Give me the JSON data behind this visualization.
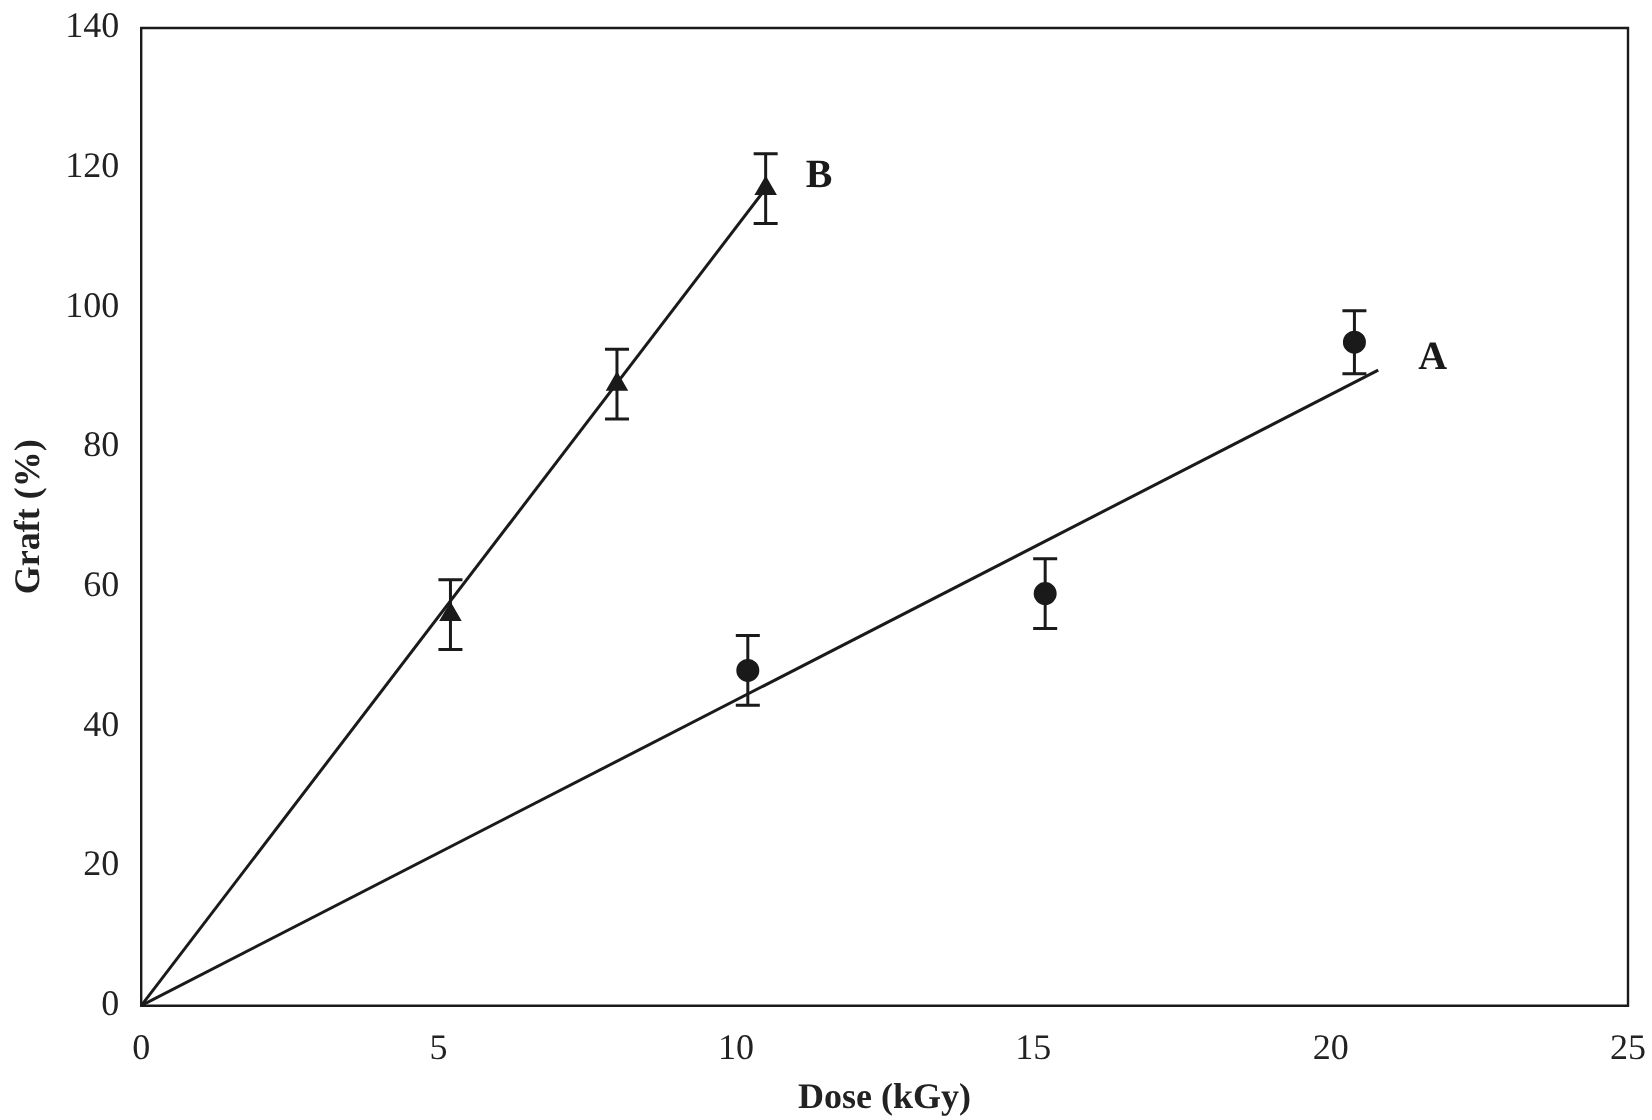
{
  "chart_data": {
    "type": "scatter",
    "xlabel": "Dose (kGy)",
    "ylabel": "Graft (%)",
    "xlim": [
      0,
      25
    ],
    "xticks": [
      0,
      5,
      10,
      15,
      20,
      25
    ],
    "ylim": [
      0,
      140
    ],
    "yticks": [
      0,
      20,
      40,
      60,
      80,
      100,
      120,
      140
    ],
    "grid": false,
    "legend": false,
    "series": [
      {
        "marker": "circle",
        "color": "#1a1a1a",
        "x": [
          10.2,
          15.2,
          20.4
        ],
        "values": [
          48,
          59,
          95
        ],
        "errors": [
          5,
          5,
          4.5
        ]
      },
      {
        "marker": "triangle",
        "color": "#1a1a1a",
        "x": [
          5.2,
          8,
          10.5
        ],
        "values": [
          56,
          89,
          117
        ],
        "errors": [
          5,
          5,
          5
        ]
      },
      {
        "type": "line",
        "name": "A",
        "marker": "none",
        "color": "#1a1a1a",
        "x": [
          0,
          20.8
        ],
        "values": [
          0,
          91
        ]
      },
      {
        "type": "line",
        "name": "B",
        "marker": "none",
        "color": "#1a1a1a",
        "x": [
          0,
          10.5
        ],
        "values": [
          0,
          117
        ]
      }
    ]
  }
}
